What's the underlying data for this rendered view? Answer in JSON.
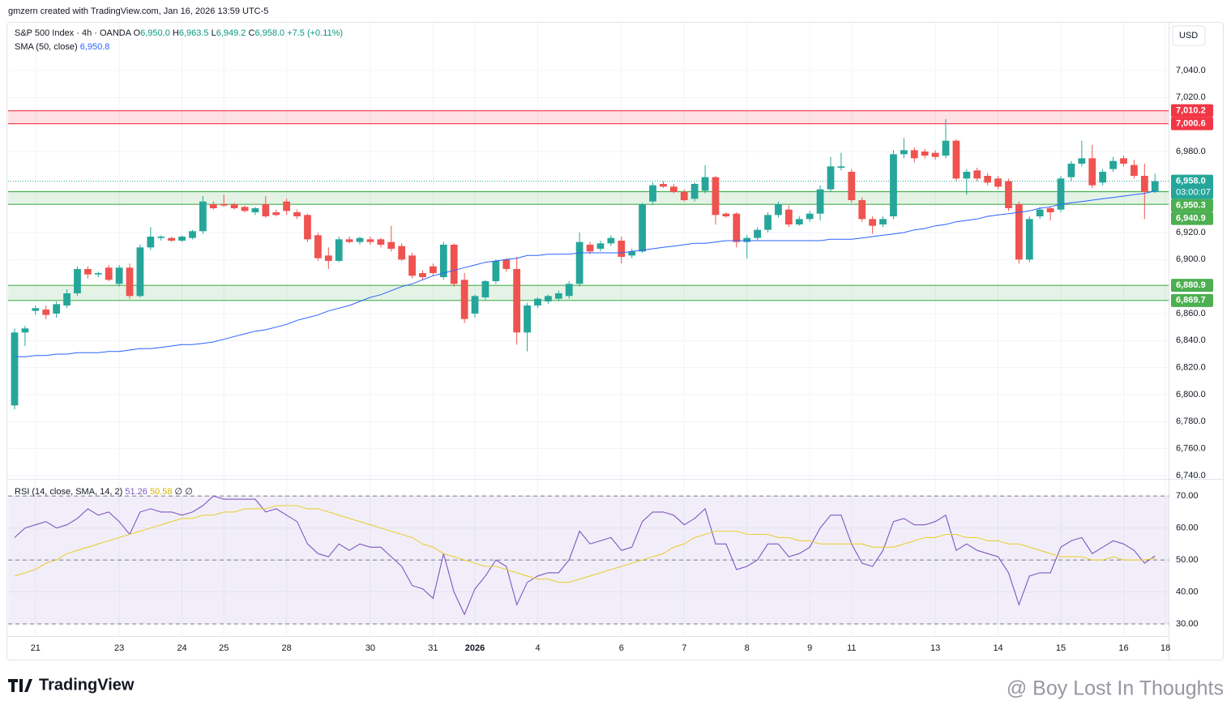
{
  "header": {
    "attribution": "gmzern created with TradingView.com, Jan 16, 2026 13:59 UTC-5"
  },
  "chart_data": [
    {
      "type": "candlestick",
      "legend": {
        "symbol": "S&P 500 Index · 4h · OANDA",
        "ohlc": [
          {
            "key": "O",
            "text": "6,950.0"
          },
          {
            "key": "H",
            "text": "6,963.5"
          },
          {
            "key": "L",
            "text": "6,949.2"
          },
          {
            "key": "C",
            "text": "6,958.0"
          }
        ],
        "change": "+7.5 (+0.11%)"
      },
      "currency": "USD",
      "open": [
        6792,
        6846,
        6862,
        6863,
        6860,
        6866,
        6875,
        6893,
        6889,
        6894,
        6882,
        6894,
        6873,
        6909,
        6916,
        6916,
        6914,
        6916,
        6921,
        6941,
        6941,
        6941,
        6939,
        6935,
        6941,
        6935,
        6943,
        6935,
        6933,
        6918,
        6903,
        6899,
        6915,
        6913,
        6915,
        6915,
        6913,
        6910,
        6903,
        6890,
        6895,
        6887,
        6911,
        6885,
        6860,
        6872,
        6884,
        6900,
        6893,
        6846,
        6866,
        6869,
        6871,
        6873,
        6882,
        6911,
        6908,
        6912,
        6914,
        6903,
        6906,
        6943,
        6956,
        6954,
        6950,
        6945,
        6951,
        6961,
        6934,
        6934,
        6913,
        6916,
        6922,
        6933,
        6937,
        6926,
        6930,
        6934,
        6952,
        6968,
        6965,
        6944,
        6930,
        6926,
        6932,
        6978,
        6981,
        6980,
        6979,
        6977,
        6988,
        6960,
        6966,
        6962,
        6960,
        6958,
        6941,
        6900,
        6932,
        6938,
        6937,
        6961,
        6971,
        6975,
        6957,
        6967,
        6975,
        6970,
        6962,
        6950
      ],
      "high": [
        6849,
        6851,
        6866,
        6866,
        6869,
        6878,
        6895,
        6895,
        6891,
        6896,
        6896,
        6897,
        6911,
        6924,
        6918,
        6917,
        6918,
        6922,
        6947,
        6943,
        6948,
        6942,
        6940,
        6939,
        6947,
        6937,
        6945,
        6937,
        6934,
        6920,
        6909,
        6917,
        6917,
        6917,
        6917,
        6916,
        6925,
        6912,
        6905,
        6892,
        6897,
        6913,
        6912,
        6890,
        6874,
        6885,
        6900,
        6901,
        6902,
        6868,
        6872,
        6874,
        6877,
        6884,
        6920,
        6913,
        6914,
        6918,
        6917,
        6908,
        6942,
        6957,
        6958,
        6956,
        6952,
        6957,
        6970,
        6962,
        6935,
        6935,
        6918,
        6924,
        6935,
        6943,
        6940,
        6932,
        6936,
        6955,
        6976,
        6979,
        6967,
        6946,
        6932,
        6932,
        6981,
        6990,
        6983,
        6982,
        6981,
        7004,
        6989,
        6967,
        6968,
        6964,
        6962,
        6960,
        6943,
        6932,
        6939,
        6939,
        6962,
        6973,
        6988,
        6985,
        6967,
        6976,
        6977,
        6974,
        6971,
        6963.5
      ],
      "low": [
        6789,
        6836,
        6859,
        6856,
        6857,
        6864,
        6873,
        6886,
        6887,
        6884,
        6880,
        6871,
        6872,
        6907,
        6914,
        6913,
        6913,
        6915,
        6919,
        6937,
        6939,
        6937,
        6935,
        6933,
        6931,
        6932,
        6933,
        6930,
        6913,
        6899,
        6893,
        6898,
        6912,
        6911,
        6911,
        6909,
        6906,
        6899,
        6886,
        6885,
        6888,
        6885,
        6880,
        6853,
        6857,
        6870,
        6882,
        6891,
        6837,
        6832,
        6864,
        6867,
        6869,
        6871,
        6880,
        6904,
        6906,
        6910,
        6897,
        6901,
        6905,
        6941,
        6953,
        6949,
        6943,
        6943,
        6949,
        6926,
        6931,
        6909,
        6901,
        6914,
        6920,
        6931,
        6924,
        6925,
        6928,
        6929,
        6950,
        6966,
        6942,
        6928,
        6919,
        6924,
        6930,
        6975,
        6972,
        6975,
        6974,
        6975,
        6958,
        6948,
        6958,
        6955,
        6952,
        6936,
        6897,
        6898,
        6930,
        6929,
        6935,
        6958,
        6969,
        6953,
        6955,
        6965,
        6969,
        6960,
        6930,
        6949.2
      ],
      "close": [
        6846,
        6849,
        6864,
        6859,
        6867,
        6875,
        6893,
        6889,
        6890,
        6885,
        6894,
        6873,
        6909,
        6917,
        6917,
        6914,
        6917,
        6921,
        6943,
        6938,
        6940,
        6938,
        6936,
        6938,
        6932,
        6933,
        6936,
        6932,
        6915,
        6901,
        6899,
        6915,
        6913,
        6916,
        6913,
        6911,
        6908,
        6900,
        6888,
        6887,
        6890,
        6911,
        6882,
        6856,
        6873,
        6884,
        6899,
        6893,
        6846,
        6866,
        6871,
        6873,
        6875,
        6882,
        6913,
        6906,
        6912,
        6916,
        6902,
        6906,
        6941,
        6955,
        6954,
        6950,
        6944,
        6956,
        6961,
        6933,
        6932,
        6913,
        6916,
        6922,
        6933,
        6941,
        6926,
        6930,
        6934,
        6952,
        6969,
        6969,
        6944,
        6930,
        6925,
        6930,
        6978,
        6981,
        6975,
        6977,
        6976,
        6988,
        6960,
        6965,
        6960,
        6957,
        6954,
        6938,
        6900,
        6930,
        6937,
        6935,
        6960,
        6971,
        6975,
        6955,
        6965,
        6973,
        6971,
        6962,
        6950,
        6958
      ],
      "up_color": "#26a69a",
      "down_color": "#ef5350",
      "overlays": [
        {
          "name": "SMA (50, close)",
          "color": "#2962ff",
          "value_label": "6,950.8",
          "values": [
            6828,
            6828,
            6829,
            6829,
            6830,
            6830,
            6831,
            6831,
            6831,
            6832,
            6832,
            6833,
            6834,
            6834,
            6835,
            6836,
            6837,
            6837,
            6838,
            6839,
            6841,
            6843,
            6845,
            6847,
            6848,
            6850,
            6852,
            6855,
            6857,
            6859,
            6862,
            6864,
            6866,
            6869,
            6872,
            6874,
            6877,
            6880,
            6882,
            6885,
            6888,
            6890,
            6892,
            6894,
            6896,
            6898,
            6899,
            6900,
            6901,
            6903,
            6903,
            6904,
            6904,
            6904,
            6905,
            6905,
            6905,
            6905,
            6905,
            6906,
            6907,
            6908,
            6909,
            6910,
            6911,
            6912,
            6912,
            6913,
            6914,
            6914,
            6914,
            6914,
            6914,
            6914,
            6914,
            6914,
            6914,
            6914,
            6915,
            6915,
            6915,
            6916,
            6917,
            6918,
            6919,
            6920,
            6922,
            6923,
            6925,
            6926,
            6928,
            6929,
            6930,
            6932,
            6933,
            6934,
            6935,
            6936,
            6938,
            6939,
            6941,
            6942,
            6943,
            6944,
            6945,
            6946,
            6947,
            6948,
            6949,
            6950.8
          ]
        }
      ],
      "zones": [
        {
          "low": 7000.6,
          "low_label": "7,000.6",
          "high": 7010.2,
          "high_label": "7,010.2",
          "color": "#f23645"
        },
        {
          "low": 6940.9,
          "low_label": "6,940.9",
          "high": 6950.3,
          "high_label": "6,950.3",
          "color": "#4caf50"
        },
        {
          "low": 6869.7,
          "low_label": "6,869.7",
          "high": 6880.9,
          "high_label": "6,880.9",
          "color": "#4caf50"
        }
      ],
      "last_price": {
        "value": 6958,
        "label": "6,958.0",
        "countdown": "03:00:07",
        "color": "#26a69a"
      },
      "xlim": [
        -0.62,
        110.3
      ],
      "xticks": [
        {
          "value": 2,
          "label": "21"
        },
        {
          "value": 10,
          "label": "23"
        },
        {
          "value": 16,
          "label": "24"
        },
        {
          "value": 20,
          "label": "25"
        },
        {
          "value": 26,
          "label": "28"
        },
        {
          "value": 34,
          "label": "30"
        },
        {
          "value": 40,
          "label": "31"
        },
        {
          "value": 44,
          "label": "2026"
        },
        {
          "value": 50,
          "label": "4"
        },
        {
          "value": 58,
          "label": "6"
        },
        {
          "value": 64,
          "label": "7"
        },
        {
          "value": 70,
          "label": "8"
        },
        {
          "value": 76,
          "label": "9"
        },
        {
          "value": 80,
          "label": "11"
        },
        {
          "value": 88,
          "label": "13"
        },
        {
          "value": 94,
          "label": "14"
        },
        {
          "value": 100,
          "label": "15"
        },
        {
          "value": 106,
          "label": "16"
        },
        {
          "value": 110,
          "label": "18"
        }
      ],
      "ylim": [
        6738.2,
        7075.4
      ],
      "yticks": [
        {
          "value": 6740,
          "label": "6,740.0"
        },
        {
          "value": 6760,
          "label": "6,760.0"
        },
        {
          "value": 6780,
          "label": "6,780.0"
        },
        {
          "value": 6800,
          "label": "6,800.0"
        },
        {
          "value": 6820,
          "label": "6,820.0"
        },
        {
          "value": 6840,
          "label": "6,840.0"
        },
        {
          "value": 6860,
          "label": "6,860.0"
        },
        {
          "value": 6900,
          "label": "6,900.0"
        },
        {
          "value": 6920,
          "label": "6,920.0"
        },
        {
          "value": 6980,
          "label": "6,980.0"
        },
        {
          "value": 7020,
          "label": "7,020.0"
        },
        {
          "value": 7040,
          "label": "7,040.0"
        }
      ],
      "grid": true
    },
    {
      "type": "line",
      "legend": {
        "title": "RSI (14, close, SMA, 14, 2)",
        "extras": [
          "∅",
          "∅"
        ]
      },
      "series": [
        {
          "color": "#7e57c2",
          "values": [
            57,
            60,
            61,
            62,
            60,
            61,
            63,
            66,
            64,
            65,
            62,
            58,
            65,
            66,
            65,
            65,
            64,
            65,
            67,
            70,
            69,
            69,
            69,
            69,
            65,
            66,
            64,
            62,
            55,
            52,
            51,
            55,
            53,
            55,
            54,
            54,
            51,
            48,
            42,
            41,
            38,
            52,
            40,
            33,
            41,
            45,
            50,
            48,
            36,
            43,
            45,
            46,
            46,
            50,
            59,
            55,
            56,
            57,
            53,
            54,
            62,
            65,
            65,
            64,
            61,
            63,
            66,
            55,
            55,
            47,
            48,
            50,
            55,
            55,
            51,
            52,
            54,
            60,
            64,
            64,
            55,
            49,
            48,
            53,
            62,
            63,
            61,
            61,
            62,
            64,
            53,
            55,
            53,
            52,
            51,
            46,
            36,
            45,
            46,
            46,
            54,
            56,
            57,
            52,
            54,
            56,
            55,
            53,
            49,
            51.26
          ]
        },
        {
          "color": "#e9cf3a",
          "values": [
            45,
            46,
            47,
            49,
            50,
            52,
            53,
            54,
            55,
            56,
            57,
            58,
            59,
            60,
            61,
            62,
            63,
            63,
            64,
            64,
            65,
            65,
            66,
            66,
            66,
            67,
            67,
            67,
            66,
            66,
            65,
            64,
            63,
            62,
            61,
            60,
            59,
            58,
            57,
            55,
            54,
            52,
            51,
            50,
            49,
            48,
            48,
            47,
            46,
            45,
            44,
            44,
            43,
            43,
            44,
            45,
            46,
            47,
            48,
            49,
            50,
            51,
            52,
            54,
            55,
            57,
            58,
            59,
            59,
            59,
            58,
            58,
            58,
            57,
            57,
            56,
            56,
            55,
            55,
            55,
            55,
            55,
            54,
            54,
            54,
            55,
            56,
            57,
            57,
            58,
            58,
            57,
            57,
            56,
            56,
            55,
            55,
            54,
            53,
            52,
            51,
            51,
            51,
            50,
            50,
            51,
            50,
            50,
            50,
            50.58
          ]
        }
      ],
      "band": [
        30,
        70
      ],
      "band_color": "#7e57c2",
      "levels": [
        30,
        50,
        70
      ],
      "xlim": [
        -0.62,
        110.3
      ],
      "ylim": [
        26.2,
        75.1
      ],
      "yticks": [
        {
          "value": 30,
          "label": "30.00"
        },
        {
          "value": 40,
          "label": "40.00"
        },
        {
          "value": 50,
          "label": "50.00"
        },
        {
          "value": 60,
          "label": "60.00"
        },
        {
          "value": 70,
          "label": "70.00"
        }
      ],
      "grid": true
    }
  ],
  "footer": {
    "logo": "TradingView",
    "watermark": "@ Boy Lost In Thoughts"
  }
}
